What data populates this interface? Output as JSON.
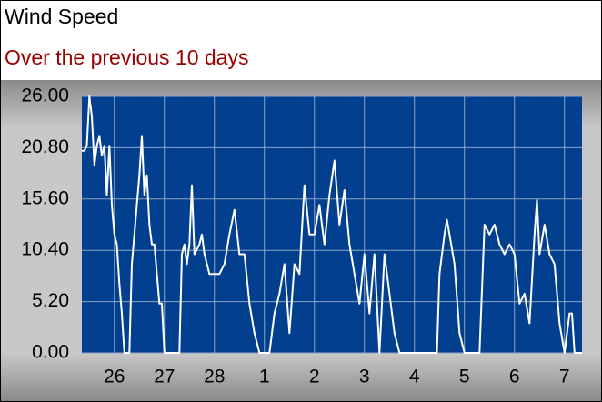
{
  "chart_data": {
    "type": "line",
    "title": "Wind Speed",
    "subtitle": "Over the previous 10 days",
    "x": [
      -0.65,
      -0.6,
      -0.55,
      -0.5,
      -0.45,
      -0.4,
      -0.35,
      -0.3,
      -0.25,
      -0.2,
      -0.15,
      -0.1,
      -0.05,
      0,
      0.05,
      0.1,
      0.15,
      0.2,
      0.3,
      0.35,
      0.4,
      0.45,
      0.5,
      0.55,
      0.6,
      0.65,
      0.7,
      0.75,
      0.8,
      0.85,
      0.9,
      0.95,
      1.0,
      1.3,
      1.35,
      1.4,
      1.45,
      1.5,
      1.55,
      1.6,
      1.7,
      1.75,
      1.8,
      1.9,
      2.1,
      2.2,
      2.3,
      2.4,
      2.5,
      2.6,
      2.7,
      2.8,
      2.9,
      3.1,
      3.2,
      3.3,
      3.4,
      3.5,
      3.6,
      3.7,
      3.8,
      3.9,
      4.0,
      4.1,
      4.2,
      4.3,
      4.4,
      4.5,
      4.6,
      4.7,
      4.8,
      4.9,
      5.0,
      5.1,
      5.2,
      5.3,
      5.4,
      5.5,
      5.6,
      5.7,
      6.45,
      6.5,
      6.6,
      6.65,
      6.7,
      6.8,
      6.9,
      7.0,
      7.3,
      7.4,
      7.5,
      7.6,
      7.7,
      7.8,
      7.9,
      8.0,
      8.1,
      8.2,
      8.3,
      8.4,
      8.45,
      8.5,
      8.6,
      8.7,
      8.8,
      8.9,
      9.0,
      9.1,
      9.15,
      9.2,
      9.35
    ],
    "series": [
      {
        "color": "#ffffff",
        "values": [
          20.5,
          20.5,
          21,
          26,
          24,
          19,
          21,
          22,
          20,
          21,
          16,
          21,
          15,
          12,
          11,
          7,
          4,
          0,
          0,
          9,
          12,
          15,
          18,
          22,
          16,
          18,
          13,
          11,
          11,
          8,
          5,
          5,
          0,
          0,
          10,
          11,
          9,
          11,
          17,
          10,
          11,
          12,
          10,
          8,
          8,
          9,
          12,
          14.5,
          10,
          10,
          5,
          2,
          0,
          0,
          4,
          6,
          9,
          2,
          9,
          8,
          17,
          12,
          12,
          15,
          11,
          16,
          19.5,
          13,
          16.5,
          11,
          8,
          5,
          10,
          4,
          10,
          0,
          10,
          6,
          2,
          0,
          0,
          8,
          12,
          13.5,
          12,
          9,
          2,
          0,
          0,
          13,
          12,
          13,
          11,
          10,
          11,
          10,
          5,
          6,
          3,
          12,
          15.5,
          10,
          13,
          10,
          9,
          3,
          0,
          4,
          4,
          0,
          0
        ]
      }
    ],
    "xlim": [
      -0.65,
      9.35
    ],
    "xticks": [
      {
        "value": 0,
        "label": "26"
      },
      {
        "value": 1,
        "label": "27"
      },
      {
        "value": 2,
        "label": "28"
      },
      {
        "value": 3,
        "label": "1"
      },
      {
        "value": 4,
        "label": "2"
      },
      {
        "value": 5,
        "label": "3"
      },
      {
        "value": 6,
        "label": "4"
      },
      {
        "value": 7,
        "label": "5"
      },
      {
        "value": 8,
        "label": "6"
      },
      {
        "value": 9,
        "label": "7"
      }
    ],
    "ylim": [
      0,
      26
    ],
    "yticks": [
      {
        "value": 0,
        "label": "0.00"
      },
      {
        "value": 5.2,
        "label": "5.20"
      },
      {
        "value": 10.4,
        "label": "10.40"
      },
      {
        "value": 15.6,
        "label": "15.60"
      },
      {
        "value": 20.8,
        "label": "20.80"
      },
      {
        "value": 26,
        "label": "26.00"
      }
    ],
    "grid": true,
    "plot_background": "#033f8f",
    "grid_color": "#8fa6c6"
  }
}
